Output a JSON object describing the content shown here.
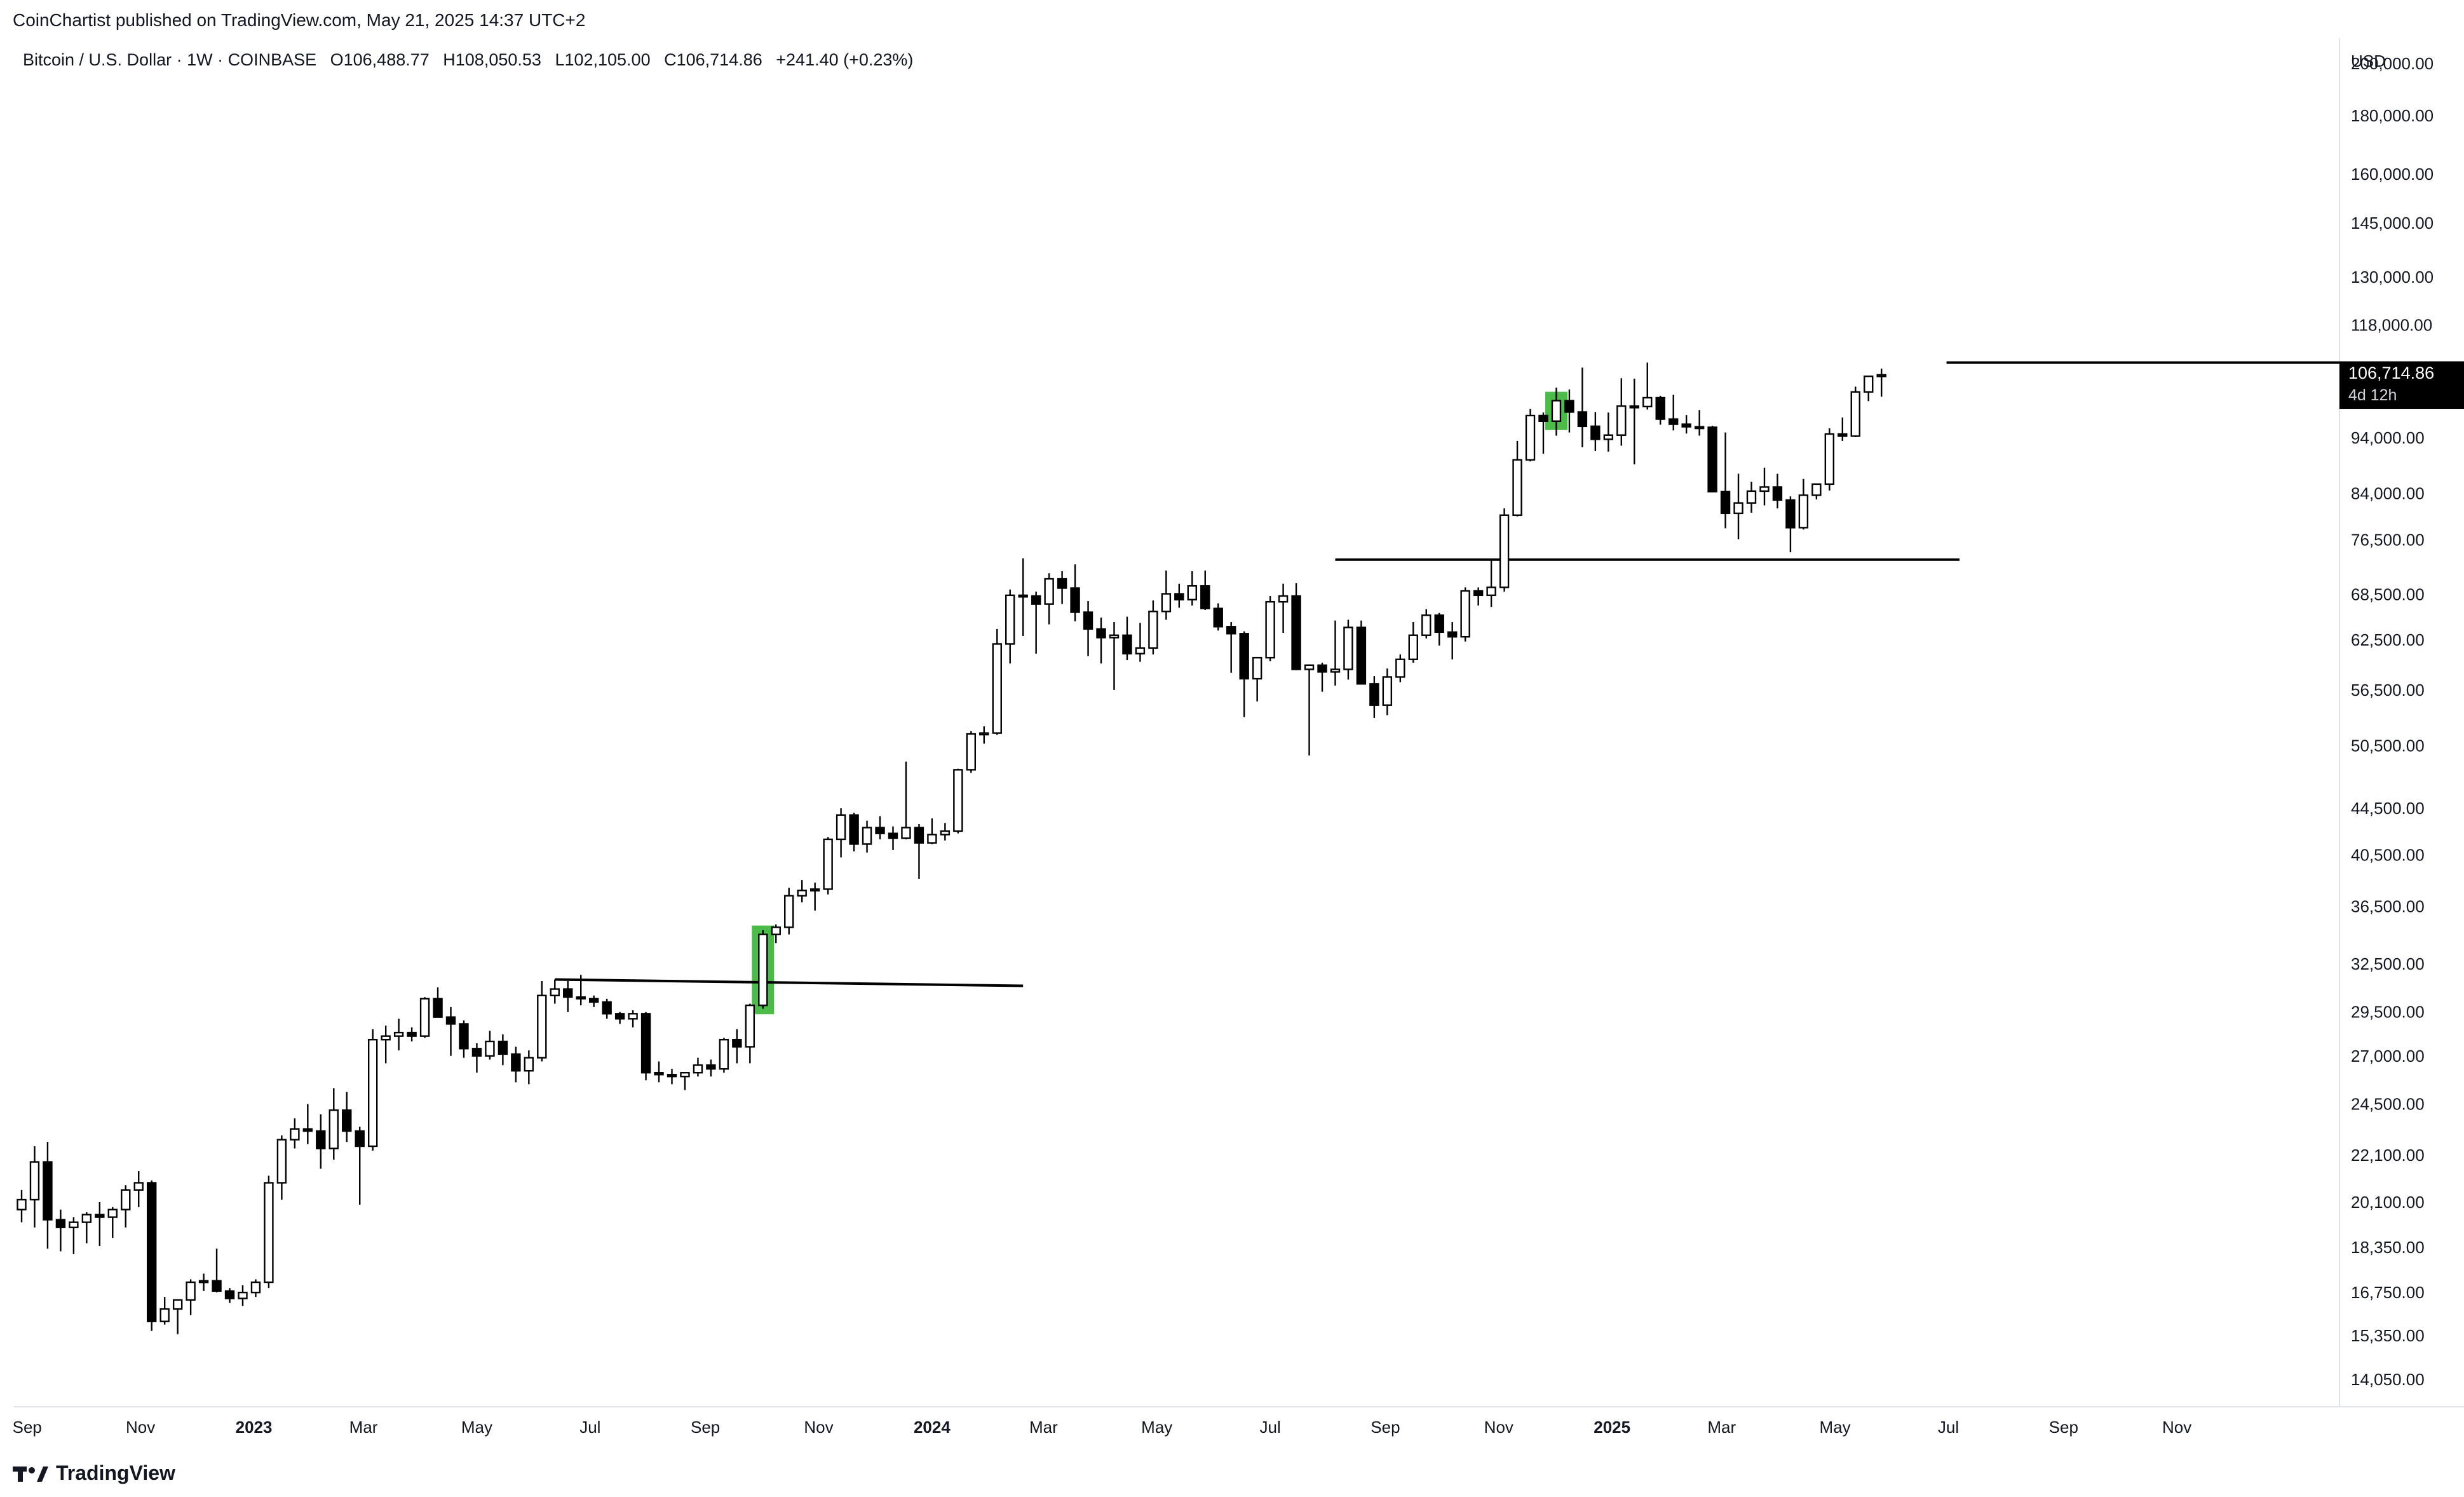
{
  "publisher": "CoinChartist published on TradingView.com, May 21, 2025 14:37 UTC+2",
  "brand": "TradingView",
  "header": {
    "symbol": "Bitcoin / U.S. Dollar · 1W · COINBASE",
    "open": "O106,488.77",
    "high": "H108,050.53",
    "low": "L102,105.00",
    "close": "C106,714.86",
    "change": "+241.40 (+0.23%)"
  },
  "currency": "USD",
  "price_tag": {
    "value": "106,714.86",
    "countdown": "4d 12h"
  },
  "colors": {
    "up_body": "#ffffff",
    "down_body": "#000000",
    "wick": "#000000",
    "highlight": "#4cbb4a",
    "tag_bg": "#000000"
  },
  "chart_data": {
    "type": "candlestick",
    "scale": "log",
    "ylim": [
      13300,
      210000
    ],
    "y_ticks": [
      {
        "v": 200000,
        "label": "200,000.00"
      },
      {
        "v": 180000,
        "label": "180,000.00"
      },
      {
        "v": 160000,
        "label": "160,000.00"
      },
      {
        "v": 145000,
        "label": "145,000.00"
      },
      {
        "v": 130000,
        "label": "130,000.00"
      },
      {
        "v": 118000,
        "label": "118,000.00"
      },
      {
        "v": 94000,
        "label": "94,000.00"
      },
      {
        "v": 84000,
        "label": "84,000.00"
      },
      {
        "v": 76500,
        "label": "76,500.00"
      },
      {
        "v": 68500,
        "label": "68,500.00"
      },
      {
        "v": 62500,
        "label": "62,500.00"
      },
      {
        "v": 56500,
        "label": "56,500.00"
      },
      {
        "v": 50500,
        "label": "50,500.00"
      },
      {
        "v": 44500,
        "label": "44,500.00"
      },
      {
        "v": 40500,
        "label": "40,500.00"
      },
      {
        "v": 36500,
        "label": "36,500.00"
      },
      {
        "v": 32500,
        "label": "32,500.00"
      },
      {
        "v": 29500,
        "label": "29,500.00"
      },
      {
        "v": 27000,
        "label": "27,000.00"
      },
      {
        "v": 24500,
        "label": "24,500.00"
      },
      {
        "v": 22100,
        "label": "22,100.00"
      },
      {
        "v": 20100,
        "label": "20,100.00"
      },
      {
        "v": 18350,
        "label": "18,350.00"
      },
      {
        "v": 16750,
        "label": "16,750.00"
      },
      {
        "v": 15350,
        "label": "15,350.00"
      },
      {
        "v": 14050,
        "label": "14,050.00"
      }
    ],
    "x_start": "2022-08-29",
    "x_ticks": [
      {
        "date": "2022-09-01",
        "label": "Sep",
        "bold": false
      },
      {
        "date": "2022-11-01",
        "label": "Nov",
        "bold": false
      },
      {
        "date": "2023-01-01",
        "label": "2023",
        "bold": true
      },
      {
        "date": "2023-03-01",
        "label": "Mar",
        "bold": false
      },
      {
        "date": "2023-05-01",
        "label": "May",
        "bold": false
      },
      {
        "date": "2023-07-01",
        "label": "Jul",
        "bold": false
      },
      {
        "date": "2023-09-01",
        "label": "Sep",
        "bold": false
      },
      {
        "date": "2023-11-01",
        "label": "Nov",
        "bold": false
      },
      {
        "date": "2024-01-01",
        "label": "2024",
        "bold": true
      },
      {
        "date": "2024-03-01",
        "label": "Mar",
        "bold": false
      },
      {
        "date": "2024-05-01",
        "label": "May",
        "bold": false
      },
      {
        "date": "2024-07-01",
        "label": "Jul",
        "bold": false
      },
      {
        "date": "2024-09-01",
        "label": "Sep",
        "bold": false
      },
      {
        "date": "2024-11-01",
        "label": "Nov",
        "bold": false
      },
      {
        "date": "2025-01-01",
        "label": "2025",
        "bold": true
      },
      {
        "date": "2025-03-01",
        "label": "Mar",
        "bold": false
      },
      {
        "date": "2025-05-01",
        "label": "May",
        "bold": false
      },
      {
        "date": "2025-07-01",
        "label": "Jul",
        "bold": false
      },
      {
        "date": "2025-09-01",
        "label": "Sep",
        "bold": false
      },
      {
        "date": "2025-11-01",
        "label": "Nov",
        "bold": false
      }
    ],
    "candles_ohlc": [
      [
        19800,
        20600,
        19300,
        20200
      ],
      [
        20200,
        22500,
        19100,
        21800
      ],
      [
        21800,
        22700,
        18300,
        19400
      ],
      [
        19400,
        19800,
        18200,
        19100
      ],
      [
        19100,
        19500,
        18100,
        19300
      ],
      [
        19300,
        19700,
        18500,
        19600
      ],
      [
        19600,
        20100,
        18400,
        19500
      ],
      [
        19500,
        19900,
        18700,
        19800
      ],
      [
        19800,
        20800,
        19100,
        20600
      ],
      [
        20600,
        21400,
        19900,
        20900
      ],
      [
        20900,
        21000,
        15500,
        15800
      ],
      [
        15800,
        16600,
        15700,
        16200
      ],
      [
        16200,
        16400,
        15400,
        16500
      ],
      [
        16500,
        17200,
        16000,
        17100
      ],
      [
        17100,
        17400,
        16800,
        17150
      ],
      [
        17150,
        18300,
        16750,
        16800
      ],
      [
        16800,
        16900,
        16400,
        16550
      ],
      [
        16550,
        17000,
        16300,
        16750
      ],
      [
        16750,
        17200,
        16600,
        17100
      ],
      [
        17100,
        21200,
        16900,
        20900
      ],
      [
        20900,
        23000,
        20200,
        22800
      ],
      [
        22800,
        23800,
        22400,
        23300
      ],
      [
        23300,
        24500,
        22600,
        23200
      ],
      [
        23200,
        24000,
        21500,
        22400
      ],
      [
        22400,
        25300,
        21900,
        24200
      ],
      [
        24200,
        25100,
        22700,
        23200
      ],
      [
        23200,
        23400,
        20000,
        22500
      ],
      [
        22500,
        28500,
        22300,
        27900
      ],
      [
        27900,
        28700,
        26600,
        28100
      ],
      [
        28100,
        29100,
        27300,
        28300
      ],
      [
        28300,
        28600,
        27800,
        28100
      ],
      [
        28100,
        30400,
        28000,
        30300
      ],
      [
        30300,
        31000,
        29200,
        29200
      ],
      [
        29200,
        29800,
        27000,
        28800
      ],
      [
        28800,
        29000,
        26900,
        27400
      ],
      [
        27400,
        27700,
        26100,
        27000
      ],
      [
        27000,
        28400,
        26800,
        27800
      ],
      [
        27800,
        28200,
        26500,
        27100
      ],
      [
        27100,
        27500,
        25600,
        26200
      ],
      [
        26200,
        27300,
        25500,
        26900
      ],
      [
        26900,
        31400,
        26700,
        30500
      ],
      [
        30500,
        31500,
        30000,
        30900
      ],
      [
        30900,
        31400,
        29500,
        30400
      ],
      [
        30400,
        31800,
        29900,
        30300
      ],
      [
        30300,
        30500,
        29800,
        30100
      ],
      [
        30100,
        30300,
        29100,
        29400
      ],
      [
        29400,
        29500,
        28800,
        29100
      ],
      [
        29100,
        29600,
        28600,
        29400
      ],
      [
        29400,
        29500,
        25700,
        26100
      ],
      [
        26100,
        26700,
        25600,
        26000
      ],
      [
        26000,
        26300,
        25500,
        25900
      ],
      [
        25900,
        26100,
        25200,
        26100
      ],
      [
        26100,
        26900,
        25900,
        26500
      ],
      [
        26500,
        26800,
        25900,
        26300
      ],
      [
        26300,
        28000,
        26100,
        27900
      ],
      [
        27900,
        28500,
        26600,
        27500
      ],
      [
        27500,
        30000,
        26600,
        29900
      ],
      [
        29900,
        34800,
        29700,
        34500
      ],
      [
        34500,
        35200,
        33900,
        35000
      ],
      [
        35000,
        37900,
        34500,
        37300
      ],
      [
        37300,
        38500,
        36800,
        37700
      ],
      [
        37700,
        38300,
        36200,
        37800
      ],
      [
        37800,
        42000,
        37400,
        41800
      ],
      [
        41800,
        44500,
        40300,
        43900
      ],
      [
        43900,
        44100,
        40800,
        41400
      ],
      [
        41400,
        43400,
        40700,
        42800
      ],
      [
        42800,
        43800,
        41800,
        42300
      ],
      [
        42300,
        42900,
        40900,
        41900
      ],
      [
        41900,
        48900,
        41800,
        42800
      ],
      [
        42800,
        43100,
        38600,
        41500
      ],
      [
        41500,
        43600,
        41400,
        42200
      ],
      [
        42200,
        43200,
        41700,
        42500
      ],
      [
        42500,
        48200,
        42300,
        48100
      ],
      [
        48100,
        52000,
        47800,
        51700
      ],
      [
        51700,
        52500,
        50700,
        51800
      ],
      [
        51800,
        63900,
        51600,
        62000
      ],
      [
        62000,
        69200,
        59600,
        68400
      ],
      [
        68400,
        73700,
        63000,
        68300
      ],
      [
        68300,
        68900,
        60800,
        67200
      ],
      [
        67200,
        71500,
        64500,
        70700
      ],
      [
        70700,
        71800,
        67200,
        69400
      ],
      [
        69400,
        72800,
        64900,
        66100
      ],
      [
        66100,
        67600,
        60500,
        63900
      ],
      [
        63900,
        65400,
        59600,
        62800
      ],
      [
        62800,
        64800,
        56500,
        63100
      ],
      [
        63100,
        65500,
        60000,
        60800
      ],
      [
        60800,
        64700,
        59800,
        61500
      ],
      [
        61500,
        67700,
        60700,
        66200
      ],
      [
        66200,
        71900,
        65100,
        68600
      ],
      [
        68600,
        70000,
        66700,
        67800
      ],
      [
        67800,
        71800,
        67000,
        69700
      ],
      [
        69700,
        71900,
        66400,
        66600
      ],
      [
        66600,
        67300,
        63700,
        64200
      ],
      [
        64200,
        64800,
        58500,
        63300
      ],
      [
        63300,
        63600,
        53500,
        57800
      ],
      [
        57800,
        60000,
        55200,
        60300
      ],
      [
        60300,
        68300,
        59900,
        67500
      ],
      [
        67500,
        70000,
        63400,
        68300
      ],
      [
        68300,
        70100,
        58800,
        58900
      ],
      [
        58900,
        59500,
        49500,
        59400
      ],
      [
        59400,
        59700,
        56300,
        58600
      ],
      [
        58600,
        65000,
        57000,
        58900
      ],
      [
        58900,
        65100,
        57700,
        64100
      ],
      [
        64100,
        65000,
        57500,
        57200
      ],
      [
        57200,
        58100,
        53400,
        54800
      ],
      [
        54800,
        59000,
        53700,
        58000
      ],
      [
        58000,
        60700,
        57400,
        60100
      ],
      [
        60100,
        64800,
        59700,
        63100
      ],
      [
        63100,
        66500,
        62700,
        65700
      ],
      [
        65700,
        66000,
        61800,
        63500
      ],
      [
        63500,
        64800,
        60100,
        62900
      ],
      [
        62900,
        69500,
        62300,
        69000
      ],
      [
        69000,
        69500,
        67000,
        68400
      ],
      [
        68400,
        73500,
        66800,
        69500
      ],
      [
        69500,
        81500,
        68900,
        80400
      ],
      [
        80400,
        93400,
        80200,
        89900
      ],
      [
        89900,
        99600,
        89600,
        98300
      ],
      [
        98300,
        98900,
        91000,
        97200
      ],
      [
        97200,
        104000,
        94400,
        101300
      ],
      [
        101300,
        103600,
        95000,
        99000
      ],
      [
        99000,
        108300,
        92200,
        96200
      ],
      [
        96200,
        99000,
        91500,
        93700
      ],
      [
        93700,
        98900,
        91400,
        94500
      ],
      [
        94500,
        106000,
        92500,
        100200
      ],
      [
        100200,
        105900,
        89100,
        100100
      ],
      [
        100100,
        109400,
        99500,
        101900
      ],
      [
        101900,
        102300,
        96500,
        97600
      ],
      [
        97600,
        102500,
        95400,
        96600
      ],
      [
        96600,
        98400,
        94800,
        96100
      ],
      [
        96100,
        99400,
        94400,
        96000
      ],
      [
        96000,
        96300,
        88200,
        84300
      ],
      [
        84300,
        95000,
        78300,
        80700
      ],
      [
        80700,
        87400,
        76600,
        82400
      ],
      [
        82400,
        86000,
        80800,
        84400
      ],
      [
        84400,
        88500,
        82000,
        85100
      ],
      [
        85100,
        87400,
        81500,
        82900
      ],
      [
        82900,
        83500,
        74600,
        78400
      ],
      [
        78400,
        86500,
        78100,
        83700
      ],
      [
        83700,
        85400,
        83000,
        85600
      ],
      [
        85600,
        95800,
        84500,
        94700
      ],
      [
        94700,
        97900,
        93400,
        94300
      ],
      [
        94300,
        104200,
        94100,
        103100
      ],
      [
        103100,
        106000,
        101200,
        106400
      ],
      [
        106488.77,
        108050.53,
        102105,
        106714.86
      ]
    ],
    "annotations": {
      "resistance_lines": [
        {
          "from_index": 41,
          "to_index": 77,
          "level_start": 31500,
          "level_end": 31100
        },
        {
          "from_index": 101,
          "to_index": 149,
          "level_start": 73500,
          "level_end": 73500
        },
        {
          "from_index": 148,
          "to_index": 189,
          "level_start": 109400,
          "level_end": 109400
        }
      ],
      "highlighted_candles": [
        57,
        118
      ]
    }
  }
}
